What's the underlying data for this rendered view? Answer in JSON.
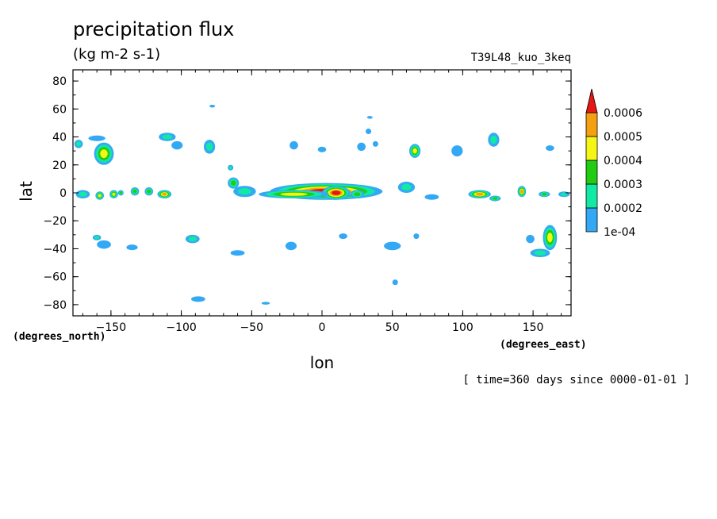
{
  "chart_data": {
    "type": "contour-map",
    "title": "precipitation flux",
    "subtitle": "(kg m-2 s-1)",
    "run_label": "T39L48_kuo_3keq",
    "time_note": "[ time=360 days since 0000-01-01 ]",
    "xlabel": "lon",
    "ylabel": "lat",
    "x_unit": "(degrees_east)",
    "y_unit": "(degrees_north)",
    "xlim": [
      -177,
      177
    ],
    "ylim": [
      -88,
      88
    ],
    "x_ticks": [
      -150,
      -100,
      -50,
      0,
      50,
      100,
      150
    ],
    "y_ticks": [
      -80,
      -60,
      -40,
      -20,
      0,
      20,
      40,
      60,
      80
    ],
    "x_tick_labels": [
      "−150",
      "−100",
      "−50",
      "0",
      "50",
      "100",
      "150"
    ],
    "y_tick_labels": [
      "−80",
      "−60",
      "−40",
      "−20",
      "0",
      "20",
      "40",
      "60",
      "80"
    ],
    "levels": [
      0.0001,
      0.0002,
      0.0003,
      0.0004,
      0.0005,
      0.0006
    ],
    "level_labels": [
      "1e-04",
      "0.0002",
      "0.0003",
      "0.0004",
      "0.0005",
      "0.0006"
    ],
    "colors": [
      "#33a9f5",
      "#11e9a4",
      "#22cc11",
      "#f5f516",
      "#f5a010",
      "#e51714"
    ],
    "features": [
      {
        "lon": 3,
        "lat": 1,
        "rx": 40,
        "ry": 6,
        "peak": 6
      },
      {
        "lon": 10,
        "lat": 0,
        "rx": 10,
        "ry": 5,
        "peak": 6
      },
      {
        "lon": -20,
        "lat": -1,
        "rx": 25,
        "ry": 3,
        "peak": 4
      },
      {
        "lon": -55,
        "lat": 1,
        "rx": 8,
        "ry": 4,
        "peak": 2
      },
      {
        "lon": -63,
        "lat": 7,
        "rx": 4,
        "ry": 4,
        "peak": 3
      },
      {
        "lon": 25,
        "lat": -1,
        "rx": 5,
        "ry": 3,
        "peak": 3
      },
      {
        "lon": -155,
        "lat": 28,
        "rx": 7,
        "ry": 8,
        "peak": 4
      },
      {
        "lon": -160,
        "lat": 39,
        "rx": 6,
        "ry": 2,
        "peak": 1
      },
      {
        "lon": -173,
        "lat": 35,
        "rx": 3,
        "ry": 3,
        "peak": 2
      },
      {
        "lon": -112,
        "lat": -1,
        "rx": 5,
        "ry": 3,
        "peak": 5
      },
      {
        "lon": -148,
        "lat": -1,
        "rx": 3,
        "ry": 3,
        "peak": 4
      },
      {
        "lon": -143,
        "lat": 0,
        "rx": 2,
        "ry": 2,
        "peak": 3
      },
      {
        "lon": -133,
        "lat": 1,
        "rx": 3,
        "ry": 3,
        "peak": 3
      },
      {
        "lon": -123,
        "lat": 1,
        "rx": 3,
        "ry": 3,
        "peak": 3
      },
      {
        "lon": -158,
        "lat": -2,
        "rx": 3,
        "ry": 3,
        "peak": 4
      },
      {
        "lon": -170,
        "lat": -1,
        "rx": 5,
        "ry": 3,
        "peak": 2
      },
      {
        "lon": -110,
        "lat": 40,
        "rx": 6,
        "ry": 3,
        "peak": 2
      },
      {
        "lon": -103,
        "lat": 34,
        "rx": 4,
        "ry": 3,
        "peak": 1
      },
      {
        "lon": -80,
        "lat": 33,
        "rx": 4,
        "ry": 5,
        "peak": 2
      },
      {
        "lon": -65,
        "lat": 18,
        "rx": 2,
        "ry": 2,
        "peak": 2
      },
      {
        "lon": -20,
        "lat": 34,
        "rx": 3,
        "ry": 3,
        "peak": 1
      },
      {
        "lon": 0,
        "lat": 31,
        "rx": 3,
        "ry": 2,
        "peak": 1
      },
      {
        "lon": 28,
        "lat": 33,
        "rx": 3,
        "ry": 3,
        "peak": 1
      },
      {
        "lon": 38,
        "lat": 35,
        "rx": 2,
        "ry": 2,
        "peak": 1
      },
      {
        "lon": 33,
        "lat": 44,
        "rx": 2,
        "ry": 2,
        "peak": 1
      },
      {
        "lon": 66,
        "lat": 30,
        "rx": 4,
        "ry": 5,
        "peak": 4
      },
      {
        "lon": 60,
        "lat": 4,
        "rx": 6,
        "ry": 4,
        "peak": 2
      },
      {
        "lon": 78,
        "lat": -3,
        "rx": 5,
        "ry": 2,
        "peak": 1
      },
      {
        "lon": 96,
        "lat": 30,
        "rx": 4,
        "ry": 4,
        "peak": 1
      },
      {
        "lon": 112,
        "lat": -1,
        "rx": 8,
        "ry": 3,
        "peak": 5
      },
      {
        "lon": 123,
        "lat": -4,
        "rx": 4,
        "ry": 2,
        "peak": 3
      },
      {
        "lon": 122,
        "lat": 38,
        "rx": 4,
        "ry": 5,
        "peak": 2
      },
      {
        "lon": 142,
        "lat": 1,
        "rx": 3,
        "ry": 4,
        "peak": 5
      },
      {
        "lon": 158,
        "lat": -1,
        "rx": 4,
        "ry": 2,
        "peak": 3
      },
      {
        "lon": 172,
        "lat": -1,
        "rx": 4,
        "ry": 2,
        "peak": 2
      },
      {
        "lon": 162,
        "lat": 32,
        "rx": 3,
        "ry": 2,
        "peak": 1
      },
      {
        "lon": -155,
        "lat": -37,
        "rx": 5,
        "ry": 3,
        "peak": 1
      },
      {
        "lon": -160,
        "lat": -32,
        "rx": 3,
        "ry": 2,
        "peak": 2
      },
      {
        "lon": -135,
        "lat": -39,
        "rx": 4,
        "ry": 2,
        "peak": 1
      },
      {
        "lon": -92,
        "lat": -33,
        "rx": 5,
        "ry": 3,
        "peak": 2
      },
      {
        "lon": -60,
        "lat": -43,
        "rx": 5,
        "ry": 2,
        "peak": 1
      },
      {
        "lon": -22,
        "lat": -38,
        "rx": 4,
        "ry": 3,
        "peak": 1
      },
      {
        "lon": 15,
        "lat": -31,
        "rx": 3,
        "ry": 2,
        "peak": 1
      },
      {
        "lon": 50,
        "lat": -38,
        "rx": 6,
        "ry": 3,
        "peak": 1
      },
      {
        "lon": 67,
        "lat": -31,
        "rx": 2,
        "ry": 2,
        "peak": 1
      },
      {
        "lon": 162,
        "lat": -32,
        "rx": 5,
        "ry": 9,
        "peak": 4
      },
      {
        "lon": 155,
        "lat": -43,
        "rx": 7,
        "ry": 3,
        "peak": 2
      },
      {
        "lon": 148,
        "lat": -33,
        "rx": 3,
        "ry": 3,
        "peak": 1
      },
      {
        "lon": -88,
        "lat": -76,
        "rx": 5,
        "ry": 2,
        "peak": 1
      },
      {
        "lon": -40,
        "lat": -79,
        "rx": 3,
        "ry": 1,
        "peak": 1
      },
      {
        "lon": 52,
        "lat": -64,
        "rx": 2,
        "ry": 2,
        "peak": 1
      },
      {
        "lon": -78,
        "lat": 62,
        "rx": 2,
        "ry": 1,
        "peak": 1
      },
      {
        "lon": 34,
        "lat": 54,
        "rx": 2,
        "ry": 1,
        "peak": 1
      }
    ]
  }
}
